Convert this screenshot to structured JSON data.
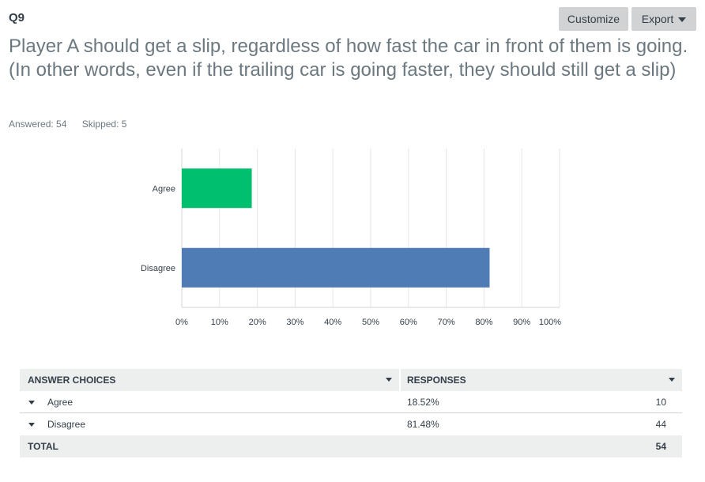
{
  "question": {
    "number": "Q9",
    "title": "Player A should get a slip, regardless of how fast the car in front of them is going.  (In other words, even if the trailing car is going faster, they should still get a slip)",
    "answered": "Answered: 54",
    "skipped": "Skipped: 5"
  },
  "toolbar": {
    "customize_label": "Customize",
    "export_label": "Export"
  },
  "chart_data": {
    "type": "bar",
    "orientation": "horizontal",
    "categories": [
      "Agree",
      "Disagree"
    ],
    "values": [
      18.52,
      81.48
    ],
    "colors": [
      "#00bf6f",
      "#507cb6"
    ],
    "xlim": [
      0,
      100
    ],
    "ticks": [
      "0%",
      "10%",
      "20%",
      "30%",
      "40%",
      "50%",
      "60%",
      "70%",
      "80%",
      "90%",
      "100%"
    ],
    "grid": true
  },
  "table": {
    "headers": [
      "ANSWER CHOICES",
      "RESPONSES"
    ],
    "rows": [
      {
        "choice": "Agree",
        "percent": "18.52%",
        "count": "10"
      },
      {
        "choice": "Disagree",
        "percent": "81.48%",
        "count": "44"
      }
    ],
    "total_label": "TOTAL",
    "total_count": "54"
  }
}
